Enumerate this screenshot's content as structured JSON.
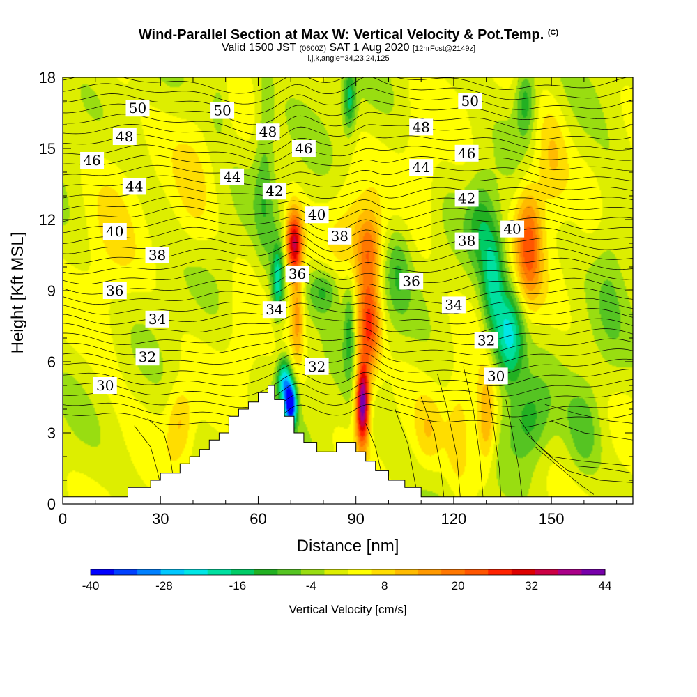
{
  "title": {
    "main": "Wind-Parallel Section at Max W: Vertical Velocity & Pot.Temp.",
    "copyright": "(C)",
    "valid_prefix": "Valid 1500 JST",
    "valid_utc": "(0600Z)",
    "valid_date": "SAT 1 Aug 2020",
    "forecast": "[12hrFcst@2149z]",
    "indices": "i,j,k,angle=34,23,24,125"
  },
  "chart_data": {
    "type": "heatmap",
    "xlabel": "Distance [nm]",
    "ylabel": "Height [Kft MSL]",
    "xlim": [
      0,
      175
    ],
    "ylim": [
      0,
      18
    ],
    "x_ticks": [
      0,
      30,
      60,
      90,
      120,
      150
    ],
    "x_tick_labels": [
      "0",
      "30",
      "60",
      "90",
      "120",
      "150"
    ],
    "y_ticks": [
      0,
      3,
      6,
      9,
      12,
      15,
      18
    ],
    "y_tick_labels": [
      "0",
      "3",
      "6",
      "9",
      "12",
      "15",
      "18"
    ],
    "colorbar": {
      "label": "Vertical Velocity [cm/s]",
      "min": -40,
      "max": 44,
      "step": 4,
      "tick_values": [
        -40,
        -28,
        -16,
        -4,
        8,
        20,
        32,
        44
      ],
      "tick_labels": [
        "-40",
        "-28",
        "-16",
        "-4",
        "8",
        "20",
        "32",
        "44"
      ],
      "colors": [
        "#0000ff",
        "#0040ff",
        "#0080ff",
        "#00c8ff",
        "#00e6e6",
        "#00e0a0",
        "#00cc66",
        "#22b022",
        "#55c422",
        "#99dd11",
        "#ddee00",
        "#ffff00",
        "#ffdd00",
        "#ffbb00",
        "#ff9900",
        "#ff7700",
        "#ff5500",
        "#ff2200",
        "#dd0000",
        "#cc0044",
        "#aa0088",
        "#7700aa"
      ]
    },
    "terrain": [
      [
        0,
        0.3
      ],
      [
        20,
        0.3
      ],
      [
        20,
        0.7
      ],
      [
        27,
        0.7
      ],
      [
        27,
        1.0
      ],
      [
        30,
        1.0
      ],
      [
        30,
        1.3
      ],
      [
        36,
        1.3
      ],
      [
        36,
        1.7
      ],
      [
        39,
        1.7
      ],
      [
        39,
        2.0
      ],
      [
        42,
        2.0
      ],
      [
        42,
        2.3
      ],
      [
        45,
        2.3
      ],
      [
        45,
        2.7
      ],
      [
        48,
        2.7
      ],
      [
        48,
        3.0
      ],
      [
        51,
        3.0
      ],
      [
        51,
        3.7
      ],
      [
        54,
        3.7
      ],
      [
        54,
        4.0
      ],
      [
        57,
        4.0
      ],
      [
        57,
        4.3
      ],
      [
        60,
        4.3
      ],
      [
        60,
        4.7
      ],
      [
        63,
        4.7
      ],
      [
        63,
        5.0
      ],
      [
        65,
        5.0
      ],
      [
        65,
        4.4
      ],
      [
        68,
        4.4
      ],
      [
        68,
        3.7
      ],
      [
        71,
        3.7
      ],
      [
        71,
        3.0
      ],
      [
        74,
        3.0
      ],
      [
        74,
        2.6
      ],
      [
        78,
        2.6
      ],
      [
        78,
        2.2
      ],
      [
        84,
        2.2
      ],
      [
        84,
        2.6
      ],
      [
        90,
        2.6
      ],
      [
        90,
        2.2
      ],
      [
        93,
        2.2
      ],
      [
        93,
        1.8
      ],
      [
        96,
        1.8
      ],
      [
        96,
        1.4
      ],
      [
        100,
        1.4
      ],
      [
        100,
        1.0
      ],
      [
        105,
        1.0
      ],
      [
        105,
        0.7
      ],
      [
        110,
        0.7
      ],
      [
        110,
        0.3
      ],
      [
        175,
        0.3
      ]
    ],
    "w_features": [
      {
        "x": 71,
        "y": 11.0,
        "sx": 2.5,
        "sy": 1.4,
        "w": 34
      },
      {
        "x": 72,
        "y": 8.0,
        "sx": 2.0,
        "sy": 2.0,
        "w": 14
      },
      {
        "x": 92,
        "y": 4.2,
        "sx": 2.0,
        "sy": 1.7,
        "w": 46
      },
      {
        "x": 94,
        "y": 7.5,
        "sx": 3.5,
        "sy": 2.2,
        "w": 26
      },
      {
        "x": 94,
        "y": 10.8,
        "sx": 4.0,
        "sy": 1.6,
        "w": 18
      },
      {
        "x": 88,
        "y": 12.0,
        "sx": 6.0,
        "sy": 2.0,
        "w": 6
      },
      {
        "x": 70,
        "y": 4.2,
        "sx": 1.8,
        "sy": 0.9,
        "w": -44
      },
      {
        "x": 68,
        "y": 5.2,
        "sx": 2.2,
        "sy": 1.0,
        "w": -26
      },
      {
        "x": 66,
        "y": 9.3,
        "sx": 2.0,
        "sy": 1.6,
        "w": -22
      },
      {
        "x": 88,
        "y": 7.5,
        "sx": 1.8,
        "sy": 2.0,
        "w": -12
      },
      {
        "x": 88,
        "y": 17.0,
        "sx": 2.0,
        "sy": 1.3,
        "w": -16
      },
      {
        "x": 80,
        "y": 9.0,
        "sx": 5.0,
        "sy": 1.0,
        "w": -12
      },
      {
        "x": 137,
        "y": 7.0,
        "sx": 4.5,
        "sy": 2.0,
        "w": -24
      },
      {
        "x": 132,
        "y": 9.5,
        "sx": 3.5,
        "sy": 2.5,
        "w": -18
      },
      {
        "x": 128,
        "y": 12.0,
        "sx": 4.0,
        "sy": 2.0,
        "w": -10
      },
      {
        "x": 142,
        "y": 17.0,
        "sx": 3.0,
        "sy": 1.5,
        "w": -14
      },
      {
        "x": 143,
        "y": 3.5,
        "sx": 6.0,
        "sy": 1.7,
        "w": -12
      },
      {
        "x": 160,
        "y": 3.0,
        "sx": 5.0,
        "sy": 2.0,
        "w": -8
      },
      {
        "x": 143,
        "y": 11.0,
        "sx": 4.0,
        "sy": 2.5,
        "w": 22
      },
      {
        "x": 150,
        "y": 14.5,
        "sx": 5.0,
        "sy": 2.5,
        "w": 10
      },
      {
        "x": 130,
        "y": 3.5,
        "sx": 3.0,
        "sy": 2.0,
        "w": 16
      },
      {
        "x": 122,
        "y": 3.0,
        "sx": 4.0,
        "sy": 2.5,
        "w": 8
      },
      {
        "x": 112,
        "y": 3.0,
        "sx": 4.0,
        "sy": 1.5,
        "w": 6
      },
      {
        "x": 36,
        "y": 3.5,
        "sx": 4.0,
        "sy": 1.5,
        "w": 10
      },
      {
        "x": 15,
        "y": 11.0,
        "sx": 8.0,
        "sy": 7.0,
        "w": 4
      },
      {
        "x": 40,
        "y": 13.0,
        "sx": 6.0,
        "sy": 3.0,
        "w": 5
      },
      {
        "x": 55,
        "y": 7.0,
        "sx": 5.0,
        "sy": 2.5,
        "w": 4
      },
      {
        "x": 110,
        "y": 14.0,
        "sx": 5.0,
        "sy": 3.0,
        "w": 5
      },
      {
        "x": 62,
        "y": 14.0,
        "sx": 3.0,
        "sy": 4.0,
        "w": -8
      },
      {
        "x": 103,
        "y": 10.0,
        "sx": 4.0,
        "sy": 2.0,
        "w": -8
      },
      {
        "x": 48,
        "y": 17.0,
        "sx": 3.0,
        "sy": 1.5,
        "w": -6
      },
      {
        "x": 168,
        "y": 10.0,
        "sx": 5.0,
        "sy": 4.0,
        "w": -5
      }
    ],
    "theta_contours": [
      {
        "label": "30",
        "base": 4.8,
        "label_x": 13
      },
      {
        "label": "32",
        "base": 6.05,
        "label_x": 26
      },
      {
        "label": "34",
        "base": 7.55,
        "label_x": 29
      },
      {
        "label": "36",
        "base": 8.85,
        "label_x": 16
      },
      {
        "label": "38",
        "base": 10.35,
        "label_x": 30
      },
      {
        "label": "40",
        "base": 11.4,
        "label_x": 16
      },
      {
        "label": "42",
        "base": 12.4,
        "label_x": 66
      },
      {
        "label": "44",
        "base": 13.4,
        "label_x": 22
      },
      {
        "label": "46",
        "base": 14.45,
        "label_x": 9
      },
      {
        "label": "48",
        "base": 15.45,
        "label_x": 19
      },
      {
        "label": "50",
        "base": 16.6,
        "label_x": 23
      }
    ],
    "contour_labels": [
      {
        "text": "50",
        "x": 23,
        "y": 16.7
      },
      {
        "text": "50",
        "x": 49,
        "y": 16.6
      },
      {
        "text": "50",
        "x": 125,
        "y": 17.0
      },
      {
        "text": "48",
        "x": 19,
        "y": 15.5
      },
      {
        "text": "48",
        "x": 63,
        "y": 15.7
      },
      {
        "text": "48",
        "x": 110,
        "y": 15.9
      },
      {
        "text": "46",
        "x": 9,
        "y": 14.5
      },
      {
        "text": "46",
        "x": 74,
        "y": 15.0
      },
      {
        "text": "46",
        "x": 124,
        "y": 14.8
      },
      {
        "text": "44",
        "x": 22,
        "y": 13.4
      },
      {
        "text": "44",
        "x": 52,
        "y": 13.8
      },
      {
        "text": "44",
        "x": 110,
        "y": 14.2
      },
      {
        "text": "42",
        "x": 65,
        "y": 13.2
      },
      {
        "text": "42",
        "x": 124,
        "y": 12.9
      },
      {
        "text": "40",
        "x": 16,
        "y": 11.5
      },
      {
        "text": "40",
        "x": 78,
        "y": 12.2
      },
      {
        "text": "40",
        "x": 138,
        "y": 11.6
      },
      {
        "text": "38",
        "x": 29,
        "y": 10.5
      },
      {
        "text": "38",
        "x": 85,
        "y": 11.3
      },
      {
        "text": "38",
        "x": 124,
        "y": 11.1
      },
      {
        "text": "36",
        "x": 16,
        "y": 9.0
      },
      {
        "text": "36",
        "x": 72,
        "y": 9.7
      },
      {
        "text": "36",
        "x": 107,
        "y": 9.4
      },
      {
        "text": "34",
        "x": 29,
        "y": 7.8
      },
      {
        "text": "34",
        "x": 65,
        "y": 8.2
      },
      {
        "text": "34",
        "x": 120,
        "y": 8.4
      },
      {
        "text": "32",
        "x": 26,
        "y": 6.2
      },
      {
        "text": "32",
        "x": 78,
        "y": 5.8
      },
      {
        "text": "32",
        "x": 130,
        "y": 6.9
      },
      {
        "text": "30",
        "x": 13,
        "y": 5.0
      },
      {
        "text": "30",
        "x": 133,
        "y": 5.4
      }
    ],
    "grid": false,
    "legend": "bottom"
  }
}
